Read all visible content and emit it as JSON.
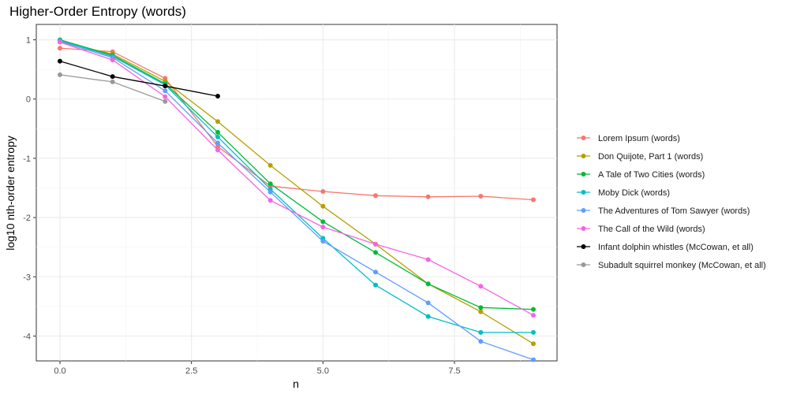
{
  "chart_data": {
    "type": "line",
    "title": "Higher-Order Entropy (words)",
    "xlabel": "n",
    "ylabel": "log10 nth-order entropy",
    "xlim": [
      -0.45,
      9.45
    ],
    "ylim": [
      -4.42,
      1.26
    ],
    "xticks": [
      0,
      2.5,
      5,
      7.5
    ],
    "xtick_labels": [
      "0.0",
      "2.5",
      "5.0",
      "7.5"
    ],
    "yticks": [
      1,
      0,
      -1,
      -2,
      -3,
      -4
    ],
    "ytick_labels": [
      "1",
      "0",
      "-1",
      "-2",
      "-3",
      "-4"
    ],
    "grid": true,
    "legend_position": "right",
    "series": [
      {
        "name": "Lorem Ipsum (words)",
        "color": "#F8766D",
        "x": [
          0,
          1,
          2,
          3,
          4,
          5,
          6,
          7,
          8,
          9
        ],
        "y": [
          0.86,
          0.8,
          0.35,
          -0.8,
          -1.47,
          -1.56,
          -1.63,
          -1.65,
          -1.64,
          -1.7
        ]
      },
      {
        "name": "Don Quijote, Part 1 (words)",
        "color": "#B79F00",
        "x": [
          0,
          1,
          2,
          3,
          4,
          5,
          6,
          7,
          8,
          9
        ],
        "y": [
          0.97,
          0.76,
          0.3,
          -0.38,
          -1.12,
          -1.81,
          -2.45,
          -3.12,
          -3.59,
          -4.13
        ]
      },
      {
        "name": "A Tale of Two Cities (words)",
        "color": "#00BA38",
        "x": [
          0,
          1,
          2,
          3,
          4,
          5,
          6,
          7,
          8,
          9
        ],
        "y": [
          1.0,
          0.74,
          0.26,
          -0.56,
          -1.43,
          -2.07,
          -2.59,
          -3.12,
          -3.52,
          -3.55
        ]
      },
      {
        "name": "Moby Dick (words)",
        "color": "#00BFC4",
        "x": [
          0,
          1,
          2,
          3,
          4,
          5,
          6,
          7,
          8,
          9
        ],
        "y": [
          0.99,
          0.72,
          0.24,
          -0.64,
          -1.52,
          -2.35,
          -3.14,
          -3.67,
          -3.94,
          -3.94
        ]
      },
      {
        "name": "The Adventures of Tom Sawyer (words)",
        "color": "#619CFF",
        "x": [
          0,
          1,
          2,
          3,
          4,
          5,
          6,
          7,
          8,
          9
        ],
        "y": [
          0.97,
          0.7,
          0.14,
          -0.74,
          -1.57,
          -2.4,
          -2.92,
          -3.44,
          -4.09,
          -4.4
        ]
      },
      {
        "name": "The Call of the Wild (words)",
        "color": "#F564E3",
        "x": [
          0,
          1,
          2,
          3,
          4,
          5,
          6,
          7,
          8,
          9
        ],
        "y": [
          0.96,
          0.66,
          0.04,
          -0.86,
          -1.71,
          -2.16,
          -2.45,
          -2.71,
          -3.16,
          -3.65
        ]
      },
      {
        "name": "Infant dolphin whistles (McCowan, et all)",
        "color": "#000000",
        "x": [
          0,
          1,
          2,
          3
        ],
        "y": [
          0.64,
          0.38,
          0.22,
          0.05
        ]
      },
      {
        "name": "Subadult squirrel monkey (McCowan, et all)",
        "color": "#999999",
        "x": [
          0,
          1,
          2
        ],
        "y": [
          0.41,
          0.29,
          -0.04
        ]
      }
    ]
  }
}
